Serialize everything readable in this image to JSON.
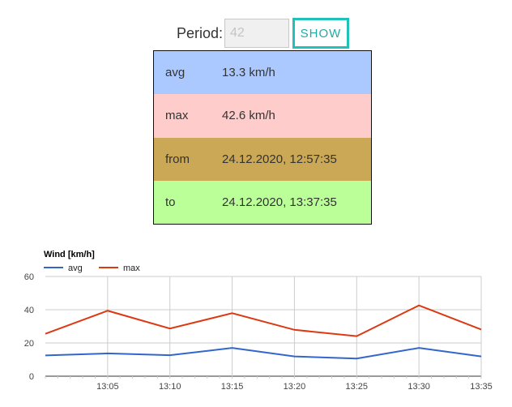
{
  "period": {
    "label": "Period:",
    "value": "42",
    "button_label": "SHOW"
  },
  "stats": [
    {
      "key": "avg",
      "value": "13.3 km/h",
      "color": "#abc9ff"
    },
    {
      "key": "max",
      "value": "42.6 km/h",
      "color": "#ffcccc"
    },
    {
      "key": "from",
      "value": "24.12.2020, 12:57:35",
      "color": "#caa855"
    },
    {
      "key": "to",
      "value": "24.12.2020, 13:37:35",
      "color": "#bbff99"
    }
  ],
  "chart_data": {
    "type": "line",
    "title": "Wind [km/h]",
    "x_tick_labels": [
      "13:05",
      "13:10",
      "13:15",
      "13:20",
      "13:25",
      "13:30",
      "13:35"
    ],
    "x_minutes": [
      0,
      5,
      10,
      15,
      20,
      25,
      30,
      35
    ],
    "x_range": [
      0,
      35
    ],
    "ylim": [
      0,
      60
    ],
    "y_ticks": [
      0,
      20,
      40,
      60
    ],
    "series": [
      {
        "name": "avg",
        "color": "#3366cc",
        "values": [
          12.5,
          13.7,
          12.6,
          17.0,
          11.9,
          10.6,
          17.0,
          11.9
        ]
      },
      {
        "name": "max",
        "color": "#dc3912",
        "values": [
          25.5,
          39.4,
          28.7,
          37.9,
          27.9,
          24.1,
          42.6,
          28.1
        ]
      }
    ],
    "legend": "top-left",
    "grid": true
  }
}
